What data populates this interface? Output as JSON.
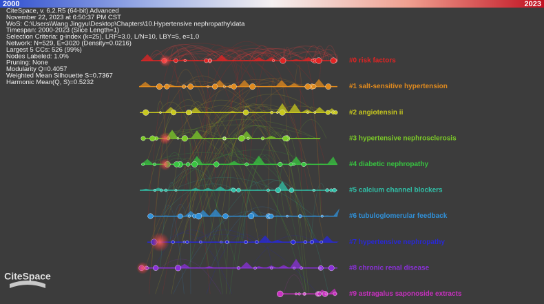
{
  "color_bar": {
    "start": "2000",
    "end": "2023"
  },
  "info": [
    "CiteSpace, v. 6.2.R5 (64-bit) Advanced",
    "November 22, 2023 at 6:50:37 PM CST",
    "WoS: C:\\Users\\Wang Jingyu\\Desktop\\Chapters\\10.Hypertensive nephropathy\\data",
    "Timespan: 2000-2023 (Slice Length=1)",
    "Selection Criteria: g-index (k=25), LRF=3.0, L/N=10, LBY=5, e=1.0",
    "Network: N=529, E=3020 (Density=0.0216)",
    "Largest 5 CCs: 526 (99%)",
    "Nodes Labeled: 1.0%",
    "Pruning: None",
    "Modularity Q=0.4057",
    "Weighted Mean Silhouette S=0.7367",
    "Harmonic Mean(Q, S)=0.5232"
  ],
  "clusters": [
    {
      "label": "#0 risk factors",
      "color": "#e02424"
    },
    {
      "label": "#1 salt-sensitive hypertension",
      "color": "#e08a1e"
    },
    {
      "label": "#2 angiotensin ii",
      "color": "#c8c81e"
    },
    {
      "label": "#3 hypertensive nephrosclerosis",
      "color": "#7ccc28"
    },
    {
      "label": "#4 diabetic nephropathy",
      "color": "#38c440"
    },
    {
      "label": "#5 calcium channel blockers",
      "color": "#30c0a8"
    },
    {
      "label": "#6 tubuloglomerular feedback",
      "color": "#3090d8"
    },
    {
      "label": "#7 hypertensive nephropathy",
      "color": "#2828d8"
    },
    {
      "label": "#8 chronic renal disease",
      "color": "#8a30d8"
    },
    {
      "label": "#9 astragalus saponoside extracts",
      "color": "#c830c0"
    }
  ],
  "logo": "CiteSpace"
}
